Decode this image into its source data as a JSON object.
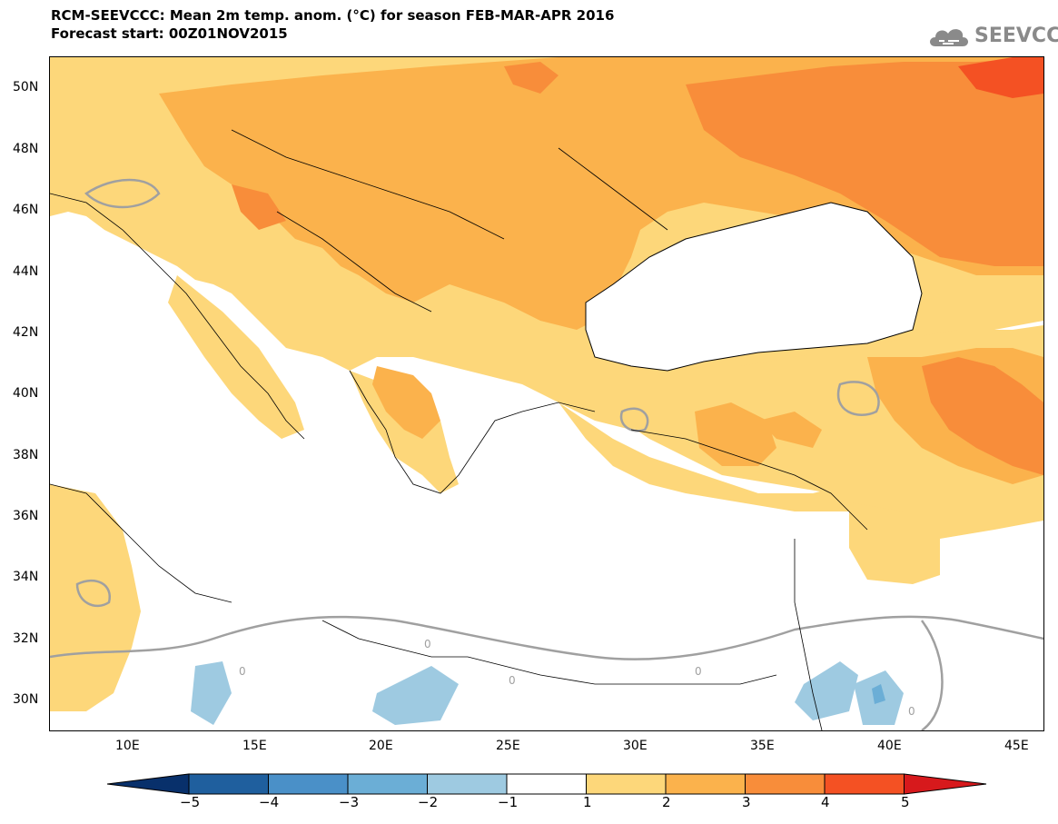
{
  "title": {
    "line1": "RCM-SEEVCCC: Mean 2m temp. anom. (°C) for season FEB-MAR-APR 2016",
    "line2": "Forecast start: 00Z01NOV2015"
  },
  "logo": {
    "text": "SEEVCCC",
    "icon": "cloud-icon",
    "color": "#8a8a8a"
  },
  "map": {
    "region": "Eastern Mediterranean / Black Sea",
    "lon_range": [
      7,
      46
    ],
    "lat_range": [
      29,
      51
    ],
    "lat_ticks": [
      "50N",
      "48N",
      "46N",
      "44N",
      "42N",
      "40N",
      "38N",
      "36N",
      "34N",
      "32N",
      "30N"
    ],
    "lon_ticks": [
      "10E",
      "15E",
      "20E",
      "25E",
      "30E",
      "35E",
      "40E",
      "45E"
    ],
    "contour_labels": [
      "0",
      "0",
      "0",
      "0",
      "0"
    ],
    "contour_color": "#a0a0a0"
  },
  "colorbar": {
    "labels": [
      "−5",
      "−4",
      "−3",
      "−2",
      "−1",
      "1",
      "2",
      "3",
      "4",
      "5"
    ],
    "colors": [
      "#08306b",
      "#1f5f9e",
      "#4a90c8",
      "#6baed6",
      "#9ecae1",
      "#ffffff",
      "#fdd77a",
      "#fbb24c",
      "#f88d3a",
      "#f45123",
      "#d7191c"
    ]
  }
}
